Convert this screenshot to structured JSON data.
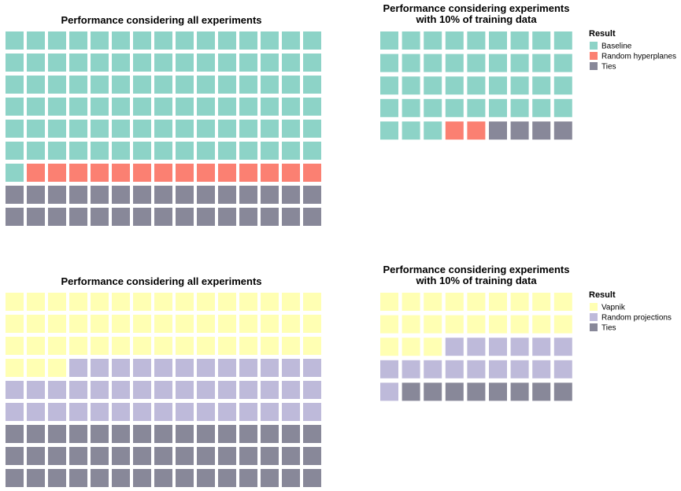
{
  "chart_data": [
    {
      "type": "waffle",
      "title": "Performance considering all experiments",
      "rows": 9,
      "cols": 15,
      "categories": [
        "Baseline",
        "Random hyperplanes",
        "Ties"
      ],
      "values": [
        91,
        14,
        30
      ],
      "colors": [
        "#8dd3c7",
        "#fb8072",
        "#888899"
      ]
    },
    {
      "type": "waffle",
      "title": "Performance considering experiments\nwith 10% of training data",
      "rows": 5,
      "cols": 9,
      "categories": [
        "Baseline",
        "Random hyperplanes",
        "Ties"
      ],
      "values": [
        39,
        2,
        4
      ],
      "colors": [
        "#8dd3c7",
        "#fb8072",
        "#888899"
      ],
      "legend": {
        "title": "Result",
        "labels": [
          "Baseline",
          "Random hyperplanes",
          "Ties"
        ]
      }
    },
    {
      "type": "waffle",
      "title": "Performance considering all experiments",
      "rows": 9,
      "cols": 15,
      "categories": [
        "Vapnik",
        "Random projections",
        "Ties"
      ],
      "values": [
        48,
        42,
        45
      ],
      "colors": [
        "#ffffb3",
        "#bebada",
        "#888899"
      ]
    },
    {
      "type": "waffle",
      "title": "Performance considering experiments\nwith 10% of training data",
      "rows": 5,
      "cols": 9,
      "categories": [
        "Vapnik",
        "Random projections",
        "Ties"
      ],
      "values": [
        21,
        16,
        8
      ],
      "colors": [
        "#ffffb3",
        "#bebada",
        "#888899"
      ],
      "legend": {
        "title": "Result",
        "labels": [
          "Vapnik",
          "Random projections",
          "Ties"
        ]
      }
    }
  ]
}
